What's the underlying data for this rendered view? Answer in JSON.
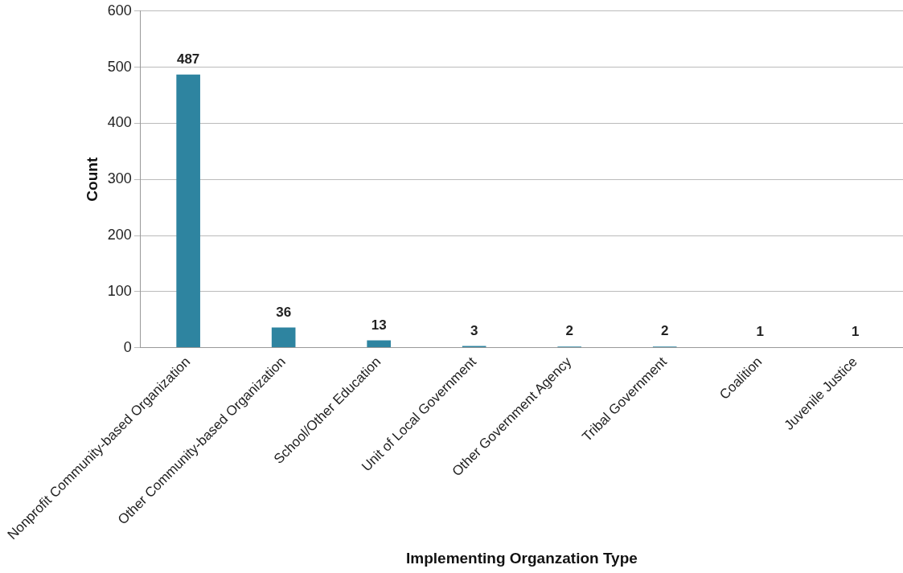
{
  "chart_data": {
    "type": "bar",
    "xlabel": "Implementing Organzation Type",
    "ylabel": "Count",
    "categories": [
      "Nonprofit Community-based Organization",
      "Other Community-based Organization",
      "School/Other Education",
      "Unit of Local Government",
      "Other Government Agency",
      "Tribal Government",
      "Coalition",
      "Juvenile Justice"
    ],
    "values": [
      487,
      36,
      13,
      3,
      2,
      2,
      1,
      1
    ],
    "color": "#2e84a0",
    "ylim": [
      0,
      600
    ],
    "yticks": [
      0,
      100,
      200,
      300,
      400,
      500,
      600
    ],
    "grid": "y",
    "legend": false,
    "data_labels": true
  }
}
